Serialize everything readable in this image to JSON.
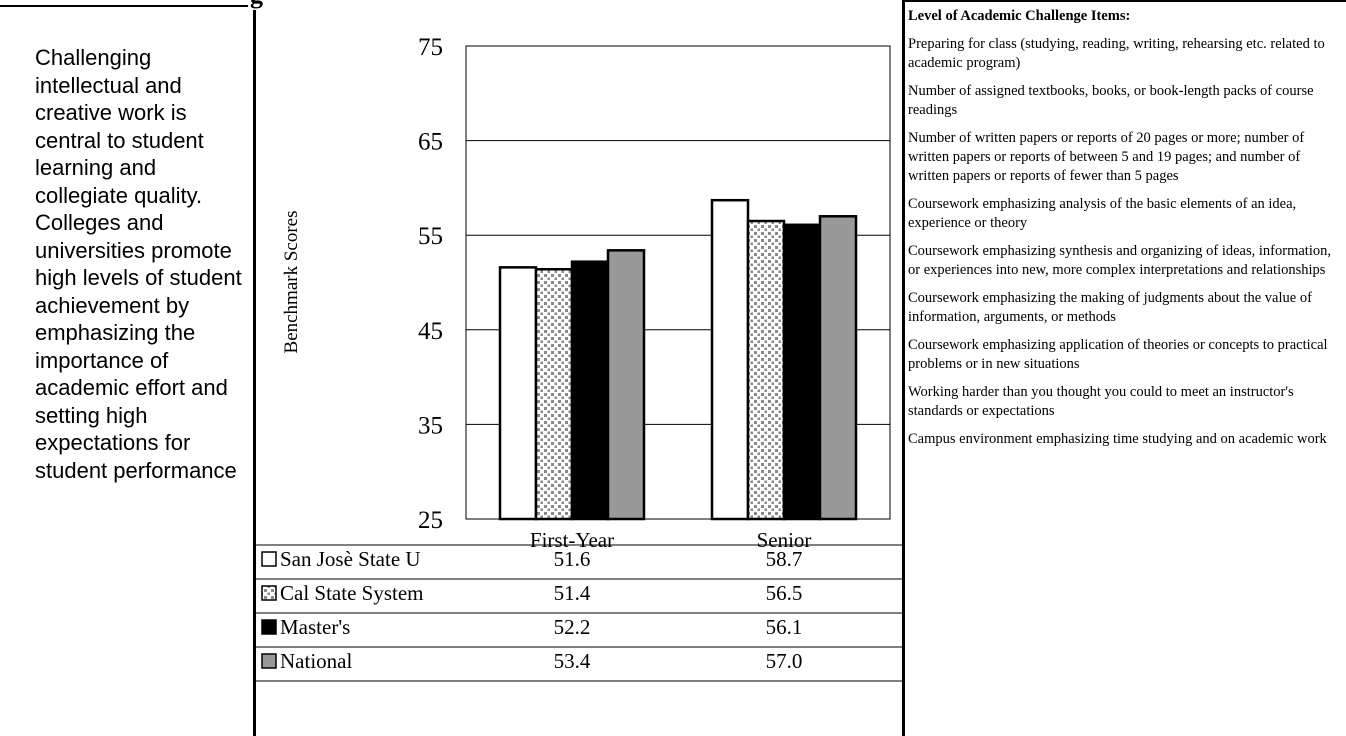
{
  "header": {
    "partial_title": "g"
  },
  "left_description": "Challenging intellectual and creative work is central to student learning and collegiate quality. Colleges and universities promote high levels of student achievement by emphasizing the importance of academic effort and setting high expectations for student performance",
  "right_panel": {
    "title": "Level of Academic Challenge Items:",
    "items": [
      "Preparing for class (studying, reading, writing, rehearsing etc. related to academic program)",
      "Number of assigned textbooks, books, or book-length packs of course readings",
      "Number of written papers or reports of 20 pages or more; number of written papers or reports of between 5 and 19 pages; and  number of written papers or reports of fewer than 5 pages",
      "Coursework emphasizing analysis of the basic elements of an idea, experience or theory",
      "Coursework emphasizing synthesis and organizing of ideas, information, or experiences into new, more complex interpretations and relationships",
      "Coursework emphasizing the making of judgments about the value of information, arguments, or methods",
      "Coursework emphasizing application of theories or concepts to practical problems or in new situations",
      "Working harder than you thought you could to meet an instructor's standards or expectations",
      "Campus environment emphasizing time studying and on academic work"
    ]
  },
  "chart_data": {
    "type": "bar",
    "ylabel": "Benchmark Scores",
    "xlabel": "",
    "ylim": [
      25,
      75
    ],
    "yticks": [
      25,
      35,
      45,
      55,
      65,
      75
    ],
    "grid": true,
    "categories": [
      "First-Year",
      "Senior"
    ],
    "series": [
      {
        "name": "San Josè State U",
        "values": [
          51.6,
          58.7
        ],
        "display": [
          "51.6",
          "58.7"
        ],
        "fill": "#ffffff",
        "pattern": "none"
      },
      {
        "name": "Cal State System",
        "values": [
          51.4,
          56.5
        ],
        "display": [
          "51.4",
          "56.5"
        ],
        "fill": "#ffffff",
        "pattern": "dots"
      },
      {
        "name": "Master's",
        "values": [
          52.2,
          56.1
        ],
        "display": [
          "52.2",
          "56.1"
        ],
        "fill": "#000000",
        "pattern": "none"
      },
      {
        "name": "National",
        "values": [
          53.4,
          57.0
        ],
        "display": [
          "53.4",
          "57.0"
        ],
        "fill": "#999999",
        "pattern": "none"
      }
    ],
    "data_table": true
  }
}
